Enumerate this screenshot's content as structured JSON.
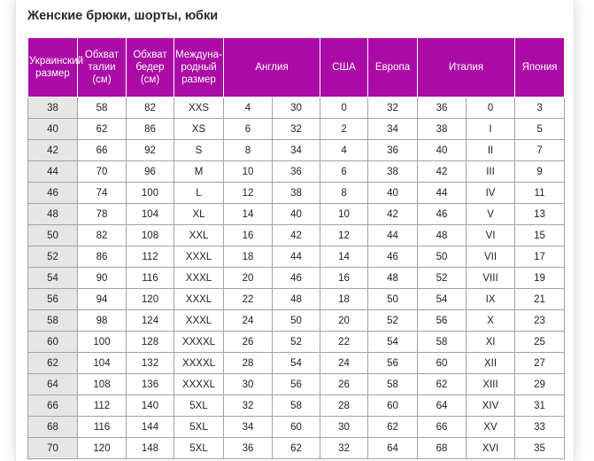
{
  "title": "Женские брюки, шорты, юбки",
  "colors": {
    "header_bg": "#ab0aa6",
    "header_text": "#ffffff",
    "grid_line": "#a3a3a3",
    "first_col_bg": "#e6e6e6"
  },
  "headers": {
    "ukraine": "Украинский размер",
    "waist": "Обхват талии (см)",
    "hips": "Обхват бедер (см)",
    "intl": "Междуна-родный размер",
    "england": "Англия",
    "usa": "США",
    "europe": "Европа",
    "italy": "Италия",
    "japan": "Япония"
  },
  "rows": [
    [
      "38",
      "58",
      "82",
      "XXS",
      "4",
      "30",
      "0",
      "32",
      "36",
      "0",
      "3"
    ],
    [
      "40",
      "62",
      "86",
      "XS",
      "6",
      "32",
      "2",
      "34",
      "38",
      "I",
      "5"
    ],
    [
      "42",
      "66",
      "92",
      "S",
      "8",
      "34",
      "4",
      "36",
      "40",
      "II",
      "7"
    ],
    [
      "44",
      "70",
      "96",
      "M",
      "10",
      "36",
      "6",
      "38",
      "42",
      "III",
      "9"
    ],
    [
      "46",
      "74",
      "100",
      "L",
      "12",
      "38",
      "8",
      "40",
      "44",
      "IV",
      "11"
    ],
    [
      "48",
      "78",
      "104",
      "XL",
      "14",
      "40",
      "10",
      "42",
      "46",
      "V",
      "13"
    ],
    [
      "50",
      "82",
      "108",
      "XXL",
      "16",
      "42",
      "12",
      "44",
      "48",
      "VI",
      "15"
    ],
    [
      "52",
      "86",
      "112",
      "XXXL",
      "18",
      "44",
      "14",
      "46",
      "50",
      "VII",
      "17"
    ],
    [
      "54",
      "90",
      "116",
      "XXXL",
      "20",
      "46",
      "16",
      "48",
      "52",
      "VIII",
      "19"
    ],
    [
      "56",
      "94",
      "120",
      "XXXL",
      "22",
      "48",
      "18",
      "50",
      "54",
      "IX",
      "21"
    ],
    [
      "58",
      "98",
      "124",
      "XXXL",
      "24",
      "50",
      "20",
      "52",
      "56",
      "X",
      "23"
    ],
    [
      "60",
      "100",
      "128",
      "XXXXL",
      "26",
      "52",
      "22",
      "54",
      "58",
      "XI",
      "25"
    ],
    [
      "62",
      "104",
      "132",
      "XXXXL",
      "28",
      "54",
      "24",
      "56",
      "60",
      "XII",
      "27"
    ],
    [
      "64",
      "108",
      "136",
      "XXXXL",
      "30",
      "56",
      "26",
      "58",
      "62",
      "XIII",
      "29"
    ],
    [
      "66",
      "112",
      "140",
      "5XL",
      "32",
      "58",
      "28",
      "60",
      "64",
      "XIV",
      "31"
    ],
    [
      "68",
      "116",
      "144",
      "5XL",
      "34",
      "60",
      "30",
      "62",
      "66",
      "XV",
      "33"
    ],
    [
      "70",
      "120",
      "148",
      "5XL",
      "36",
      "62",
      "32",
      "64",
      "68",
      "XVI",
      "35"
    ]
  ]
}
